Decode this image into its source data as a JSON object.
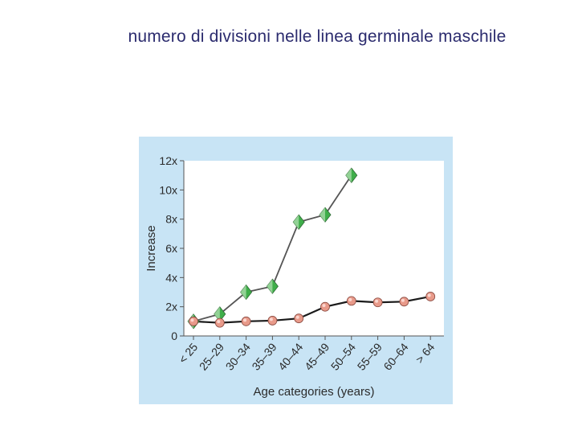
{
  "slide": {
    "title": "numero di divisioni nelle linea germinale maschile"
  },
  "chart_data": {
    "type": "line",
    "title": "",
    "xlabel": "Age categories (years)",
    "ylabel": "Increase",
    "categories": [
      "< 25",
      "25–29",
      "30–34",
      "35–39",
      "40–44",
      "45–49",
      "50–54",
      "55–59",
      "60–64",
      "> 64"
    ],
    "y_ticks": [
      "0",
      "2x",
      "4x",
      "6x",
      "8x",
      "10x",
      "12x"
    ],
    "ylim": [
      0,
      12
    ],
    "grid": false,
    "series": [
      {
        "values": [
          1,
          1.5,
          3,
          3.4,
          7.8,
          8.3,
          11,
          null,
          null,
          null
        ],
        "marker": "diamond",
        "color": "#3fae4a"
      },
      {
        "values": [
          1,
          0.9,
          1,
          1.05,
          1.2,
          2,
          2.4,
          2.3,
          2.35,
          2.7
        ],
        "marker": "circle",
        "color": "#e89a8a"
      }
    ]
  }
}
